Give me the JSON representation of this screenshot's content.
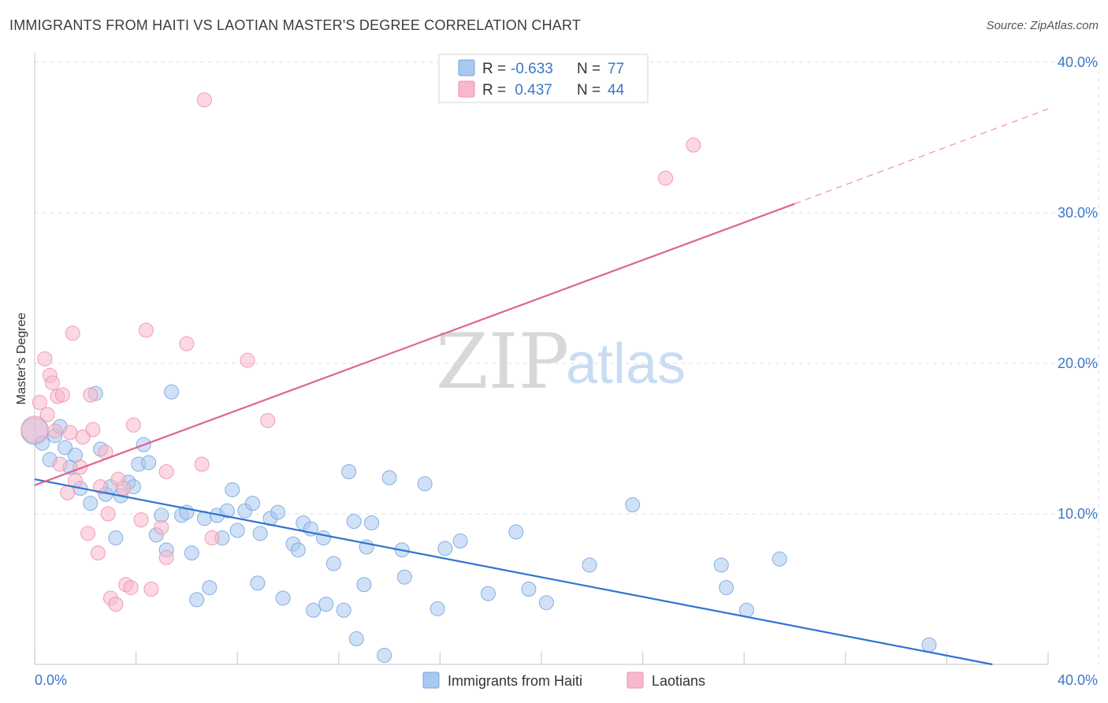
{
  "title": "IMMIGRANTS FROM HAITI VS LAOTIAN MASTER'S DEGREE CORRELATION CHART",
  "source": "Source: ZipAtlas.com",
  "watermark": {
    "zip": "ZIP",
    "atlas": "atlas"
  },
  "colors": {
    "haiti_fill": "#a9c8f0",
    "haiti_stroke": "#7aa6de",
    "haiti_line": "#2f74d0",
    "laotian_fill": "#f7b8cb",
    "laotian_stroke": "#ee93ae",
    "laotian_line": "#e0648e",
    "tick_text": "#3a78c9",
    "grid": "#dddddd"
  },
  "legend": {
    "rows": [
      {
        "r_label": "R =",
        "r_value": "-0.633",
        "n_label": "N =",
        "n_value": "77",
        "series": "haiti"
      },
      {
        "r_label": "R =",
        "r_value": " 0.437",
        "n_label": "N =",
        "n_value": "44",
        "series": "laotian"
      }
    ]
  },
  "chart_data": {
    "type": "scatter",
    "title": "IMMIGRANTS FROM HAITI VS LAOTIAN MASTER'S DEGREE CORRELATION CHART",
    "xlabel": "",
    "ylabel": "Master's Degree",
    "xlim": [
      0,
      40
    ],
    "ylim": [
      0,
      40
    ],
    "x_tick_labels": [
      "0.0%",
      "40.0%"
    ],
    "y_ticks": [
      10,
      20,
      30,
      40
    ],
    "y_tick_labels": [
      "10.0%",
      "20.0%",
      "30.0%",
      "40.0%"
    ],
    "grid": true,
    "legend_position": "bottom",
    "series": [
      {
        "name": "Immigrants from Haiti",
        "key": "haiti",
        "r": -0.633,
        "n": 77,
        "trend": {
          "x": [
            0,
            37.8
          ],
          "y": [
            12.3,
            0.0
          ]
        },
        "points": [
          [
            0.0,
            15.5
          ],
          [
            0.3,
            14.7
          ],
          [
            0.6,
            13.6
          ],
          [
            0.8,
            15.2
          ],
          [
            1.0,
            15.8
          ],
          [
            1.2,
            14.4
          ],
          [
            1.4,
            13.1
          ],
          [
            1.6,
            13.9
          ],
          [
            1.8,
            11.7
          ],
          [
            2.2,
            10.7
          ],
          [
            2.4,
            18.0
          ],
          [
            2.6,
            14.3
          ],
          [
            2.8,
            11.3
          ],
          [
            3.0,
            11.8
          ],
          [
            3.2,
            8.4
          ],
          [
            3.4,
            11.2
          ],
          [
            3.7,
            12.1
          ],
          [
            3.9,
            11.8
          ],
          [
            4.1,
            13.3
          ],
          [
            4.3,
            14.6
          ],
          [
            4.5,
            13.4
          ],
          [
            4.8,
            8.6
          ],
          [
            5.0,
            9.9
          ],
          [
            5.2,
            7.6
          ],
          [
            5.4,
            18.1
          ],
          [
            5.8,
            9.9
          ],
          [
            6.0,
            10.1
          ],
          [
            6.2,
            7.4
          ],
          [
            6.4,
            4.3
          ],
          [
            6.7,
            9.7
          ],
          [
            6.9,
            5.1
          ],
          [
            7.2,
            9.9
          ],
          [
            7.4,
            8.4
          ],
          [
            7.6,
            10.2
          ],
          [
            7.8,
            11.6
          ],
          [
            8.0,
            8.9
          ],
          [
            8.3,
            10.2
          ],
          [
            8.6,
            10.7
          ],
          [
            8.8,
            5.4
          ],
          [
            8.9,
            8.7
          ],
          [
            9.3,
            9.7
          ],
          [
            9.6,
            10.1
          ],
          [
            9.8,
            4.4
          ],
          [
            10.2,
            8.0
          ],
          [
            10.4,
            7.6
          ],
          [
            10.6,
            9.4
          ],
          [
            10.9,
            9.0
          ],
          [
            11.0,
            3.6
          ],
          [
            11.4,
            8.4
          ],
          [
            11.5,
            4.0
          ],
          [
            11.8,
            6.7
          ],
          [
            12.2,
            3.6
          ],
          [
            12.4,
            12.8
          ],
          [
            12.6,
            9.5
          ],
          [
            12.7,
            1.7
          ],
          [
            13.0,
            5.3
          ],
          [
            13.1,
            7.8
          ],
          [
            13.3,
            9.4
          ],
          [
            13.8,
            0.6
          ],
          [
            14.0,
            12.4
          ],
          [
            14.5,
            7.6
          ],
          [
            14.6,
            5.8
          ],
          [
            15.4,
            12.0
          ],
          [
            15.9,
            3.7
          ],
          [
            16.2,
            7.7
          ],
          [
            16.8,
            8.2
          ],
          [
            17.9,
            4.7
          ],
          [
            19.0,
            8.8
          ],
          [
            19.5,
            5.0
          ],
          [
            20.2,
            4.1
          ],
          [
            21.9,
            6.6
          ],
          [
            23.6,
            10.6
          ],
          [
            27.1,
            6.6
          ],
          [
            27.3,
            5.1
          ],
          [
            28.1,
            3.6
          ],
          [
            29.4,
            7.0
          ],
          [
            35.3,
            1.3
          ]
        ]
      },
      {
        "name": "Laotians",
        "key": "laotian",
        "r": 0.437,
        "n": 44,
        "trend": {
          "x": [
            0,
            30.0
          ],
          "y": [
            11.9,
            30.6
          ]
        },
        "trend_dashed": {
          "x": [
            30.0,
            40.0
          ],
          "y": [
            30.6,
            36.9
          ]
        },
        "points": [
          [
            0.0,
            15.6
          ],
          [
            0.2,
            17.4
          ],
          [
            0.4,
            20.3
          ],
          [
            0.5,
            16.6
          ],
          [
            0.6,
            19.2
          ],
          [
            0.7,
            18.7
          ],
          [
            0.8,
            15.5
          ],
          [
            0.9,
            17.8
          ],
          [
            1.0,
            13.3
          ],
          [
            1.1,
            17.9
          ],
          [
            1.3,
            11.4
          ],
          [
            1.4,
            15.4
          ],
          [
            1.5,
            22.0
          ],
          [
            1.6,
            12.2
          ],
          [
            1.8,
            13.1
          ],
          [
            1.9,
            15.1
          ],
          [
            2.1,
            8.7
          ],
          [
            2.2,
            17.9
          ],
          [
            2.3,
            15.6
          ],
          [
            2.5,
            7.4
          ],
          [
            2.6,
            11.8
          ],
          [
            2.8,
            14.1
          ],
          [
            2.9,
            10.0
          ],
          [
            3.0,
            4.4
          ],
          [
            3.2,
            4.0
          ],
          [
            3.3,
            12.3
          ],
          [
            3.5,
            11.7
          ],
          [
            3.6,
            5.3
          ],
          [
            3.8,
            5.1
          ],
          [
            3.9,
            15.9
          ],
          [
            4.2,
            9.6
          ],
          [
            4.4,
            22.2
          ],
          [
            4.6,
            5.0
          ],
          [
            5.0,
            9.1
          ],
          [
            5.2,
            12.8
          ],
          [
            5.2,
            7.1
          ],
          [
            6.0,
            21.3
          ],
          [
            6.6,
            13.3
          ],
          [
            6.7,
            37.5
          ],
          [
            7.0,
            8.4
          ],
          [
            8.4,
            20.2
          ],
          [
            9.2,
            16.2
          ],
          [
            24.9,
            32.3
          ],
          [
            26.0,
            34.5
          ]
        ]
      }
    ]
  },
  "bottom_legend": [
    {
      "label": "Immigrants from Haiti",
      "series": "haiti"
    },
    {
      "label": "Laotians",
      "series": "laotian"
    }
  ]
}
